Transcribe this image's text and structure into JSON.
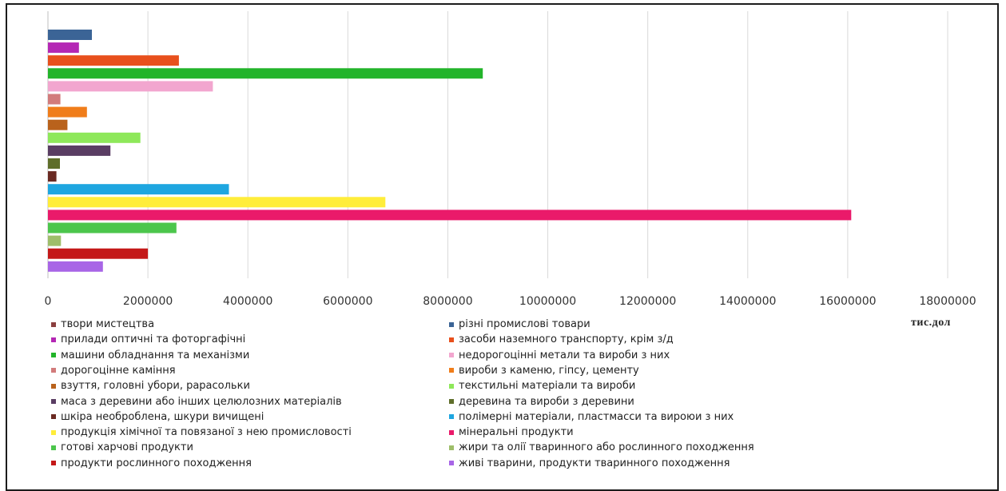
{
  "chart_data": {
    "type": "bar",
    "orientation": "horizontal",
    "xlim": [
      0,
      18000000
    ],
    "x_ticks": [
      "0",
      "2000000",
      "4000000",
      "6000000",
      "8000000",
      "10000000",
      "12000000",
      "14000000",
      "16000000",
      "18000000"
    ],
    "unit_label": "тис.дол",
    "grid": true,
    "legend_position": "bottom",
    "series": [
      {
        "name": "різні промислові товари",
        "value": 880000,
        "color": "#3b6496"
      },
      {
        "name": "прилади оптичні та фоторгафічні",
        "value": 620000,
        "color": "#b427b4"
      },
      {
        "name": "засоби наземного транспорту, крім з/д",
        "value": 2620000,
        "color": "#e8501c"
      },
      {
        "name": "машини обладнання та механізми",
        "value": 8700000,
        "color": "#22b42a"
      },
      {
        "name": "недорогоцінні метали та вироби з них",
        "value": 3300000,
        "color": "#f2a6cf"
      },
      {
        "name": "дорогоцінне каміння",
        "value": 250000,
        "color": "#d27b7b"
      },
      {
        "name": "вироби з каменю, гіпсу, цементу",
        "value": 780000,
        "color": "#f07d1a"
      },
      {
        "name": "взуття, головні убори, рарасольки",
        "value": 390000,
        "color": "#b9621c"
      },
      {
        "name": "текстильні матеріали та вироби",
        "value": 1850000,
        "color": "#8ee85a"
      },
      {
        "name": "маса з деревини або інших целюлозних матеріалів",
        "value": 1250000,
        "color": "#5a3d63"
      },
      {
        "name": "деревина та вироби з деревини",
        "value": 240000,
        "color": "#5f6e2a"
      },
      {
        "name": "шкіра необроблена, шкури вичищені",
        "value": 170000,
        "color": "#6a2a22"
      },
      {
        "name": "полімерні матеріали, пластмасси та вироюи з них",
        "value": 3620000,
        "color": "#1ea6e0"
      },
      {
        "name": "продукція хімічної та повязаної з нею промисловості",
        "value": 6750000,
        "color": "#ffed3a"
      },
      {
        "name": "мінеральні продукти",
        "value": 16070000,
        "color": "#ea1a6a"
      },
      {
        "name": "готові харчові продукти",
        "value": 2570000,
        "color": "#4cc64c"
      },
      {
        "name": "жири та олії тваринного або рослинного походження",
        "value": 260000,
        "color": "#9ebe6a"
      },
      {
        "name": "продукти рослинного походження",
        "value": 2000000,
        "color": "#c41818"
      },
      {
        "name": "живі тварини, продукти тваринного походження",
        "value": 1100000,
        "color": "#a865e6"
      }
    ],
    "legend_left": [
      {
        "label": "твори мистецтва",
        "color": "#8b3f3f"
      },
      {
        "label": "прилади оптичні та фоторгафічні",
        "color": "#b427b4"
      },
      {
        "label": "машини обладнання та механізми",
        "color": "#22b42a"
      },
      {
        "label": "дорогоцінне каміння",
        "color": "#d27b7b"
      },
      {
        "label": "взуття, головні убори, рарасольки",
        "color": "#b9621c"
      },
      {
        "label": "маса з деревини або інших целюлозних матеріалів",
        "color": "#5a3d63"
      },
      {
        "label": "шкіра необроблена, шкури вичищені",
        "color": "#6a2a22"
      },
      {
        "label": "продукція хімічної та повязаної з нею промисловості",
        "color": "#ffed3a"
      },
      {
        "label": "готові харчові продукти",
        "color": "#4cc64c"
      },
      {
        "label": "продукти рослинного походження",
        "color": "#c41818"
      }
    ],
    "legend_right": [
      {
        "label": "різні промислові товари",
        "color": "#3b6496"
      },
      {
        "label": "засоби наземного транспорту, крім з/д",
        "color": "#e8501c"
      },
      {
        "label": "недорогоцінні метали та вироби з них",
        "color": "#f2a6cf"
      },
      {
        "label": "вироби з каменю, гіпсу, цементу",
        "color": "#f07d1a"
      },
      {
        "label": "текстильні матеріали та вироби",
        "color": "#8ee85a"
      },
      {
        "label": "деревина та вироби з деревини",
        "color": "#5f6e2a"
      },
      {
        "label": "полімерні матеріали, пластмасси та вироюи з них",
        "color": "#1ea6e0"
      },
      {
        "label": "мінеральні продукти",
        "color": "#ea1a6a"
      },
      {
        "label": "жири та олії тваринного або рослинного походження",
        "color": "#9ebe6a"
      },
      {
        "label": "живі тварини, продукти тваринного походження",
        "color": "#a865e6"
      }
    ]
  }
}
